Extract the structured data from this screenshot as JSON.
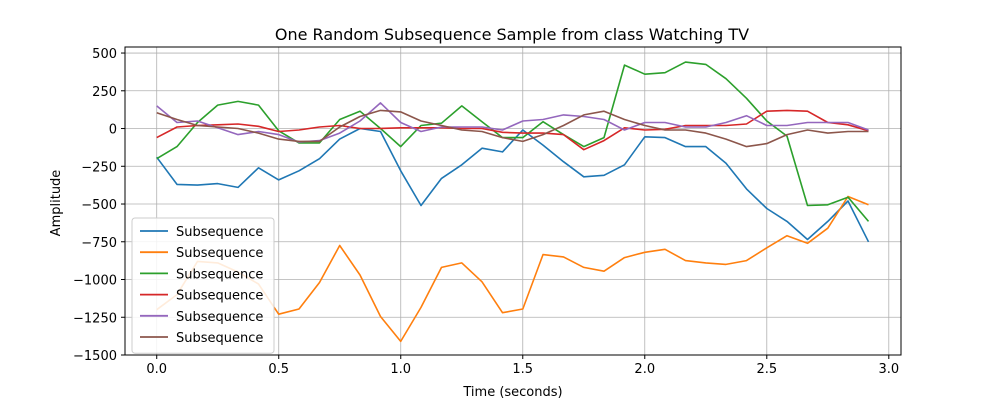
{
  "chart_data": {
    "type": "line",
    "title": "One Random Subsequence Sample from class Watching TV",
    "xlabel": "Time (seconds)",
    "ylabel": "Amplitude",
    "xlim": [
      -0.13,
      3.05
    ],
    "ylim": [
      -1500,
      540
    ],
    "xticks": [
      0.0,
      0.5,
      1.0,
      1.5,
      2.0,
      2.5,
      3.0
    ],
    "xtick_labels": [
      "0.0",
      "0.5",
      "1.0",
      "1.5",
      "2.0",
      "2.5",
      "3.0"
    ],
    "yticks": [
      500,
      250,
      0,
      -250,
      -500,
      -750,
      -1000,
      -1250,
      -1500
    ],
    "ytick_labels": [
      "500",
      "250",
      "0",
      "−250",
      "−500",
      "−750",
      "−1000",
      "−1250",
      "−1500"
    ],
    "grid": true,
    "legend_position": "lower-left",
    "x": [
      0.0,
      0.083,
      0.167,
      0.25,
      0.333,
      0.417,
      0.5,
      0.583,
      0.667,
      0.75,
      0.833,
      0.917,
      1.0,
      1.083,
      1.167,
      1.25,
      1.333,
      1.417,
      1.5,
      1.583,
      1.667,
      1.75,
      1.833,
      1.917,
      2.0,
      2.083,
      2.167,
      2.25,
      2.333,
      2.417,
      2.5,
      2.583,
      2.667,
      2.75,
      2.833,
      2.917
    ],
    "series": [
      {
        "name": "Subsequence",
        "color": "#1f77b4",
        "values": [
          -190,
          -370,
          -375,
          -365,
          -390,
          -260,
          -340,
          -280,
          -200,
          -70,
          0,
          -20,
          -280,
          -510,
          -330,
          -240,
          -130,
          -155,
          -10,
          -110,
          -220,
          -320,
          -310,
          -240,
          -55,
          -60,
          -120,
          -120,
          -230,
          -400,
          -530,
          -615,
          -735,
          -615,
          -480,
          -750
        ]
      },
      {
        "name": "Subsequence",
        "color": "#ff7f0e",
        "values": [
          -1200,
          -1100,
          -880,
          -890,
          -950,
          -1030,
          -1230,
          -1195,
          -1020,
          -775,
          -970,
          -1245,
          -1410,
          -1185,
          -920,
          -890,
          -1015,
          -1220,
          -1195,
          -835,
          -850,
          -920,
          -945,
          -855,
          -820,
          -800,
          -875,
          -890,
          -900,
          -875,
          -790,
          -710,
          -760,
          -660,
          -450,
          -505
        ]
      },
      {
        "name": "Subsequence",
        "color": "#2ca02c",
        "values": [
          -200,
          -120,
          40,
          155,
          180,
          155,
          -15,
          -95,
          -95,
          60,
          115,
          0,
          -120,
          20,
          35,
          150,
          45,
          -60,
          -60,
          45,
          -40,
          -120,
          -60,
          420,
          360,
          370,
          440,
          425,
          330,
          200,
          50,
          -50,
          -510,
          -505,
          -455,
          -615
        ]
      },
      {
        "name": "Subsequence",
        "color": "#d62728",
        "values": [
          -60,
          10,
          20,
          25,
          30,
          15,
          -20,
          -10,
          10,
          20,
          0,
          0,
          5,
          5,
          5,
          0,
          0,
          -25,
          -30,
          -30,
          -40,
          -140,
          -80,
          5,
          -10,
          -5,
          20,
          20,
          20,
          30,
          115,
          120,
          115,
          40,
          25,
          -15
        ]
      },
      {
        "name": "Subsequence",
        "color": "#9467bd",
        "values": [
          150,
          40,
          50,
          5,
          -40,
          -20,
          -40,
          -90,
          -80,
          -30,
          50,
          170,
          40,
          -20,
          10,
          10,
          10,
          -10,
          50,
          60,
          90,
          80,
          60,
          -10,
          40,
          40,
          10,
          10,
          40,
          85,
          20,
          20,
          40,
          40,
          40,
          -10
        ]
      },
      {
        "name": "Subsequence",
        "color": "#8c564b",
        "values": [
          105,
          60,
          20,
          10,
          0,
          -30,
          -70,
          -85,
          -85,
          10,
          80,
          120,
          110,
          50,
          20,
          -10,
          -20,
          -60,
          -85,
          -40,
          20,
          90,
          115,
          60,
          20,
          -10,
          -10,
          -30,
          -70,
          -120,
          -100,
          -40,
          -10,
          -30,
          -20,
          -20
        ]
      }
    ]
  }
}
